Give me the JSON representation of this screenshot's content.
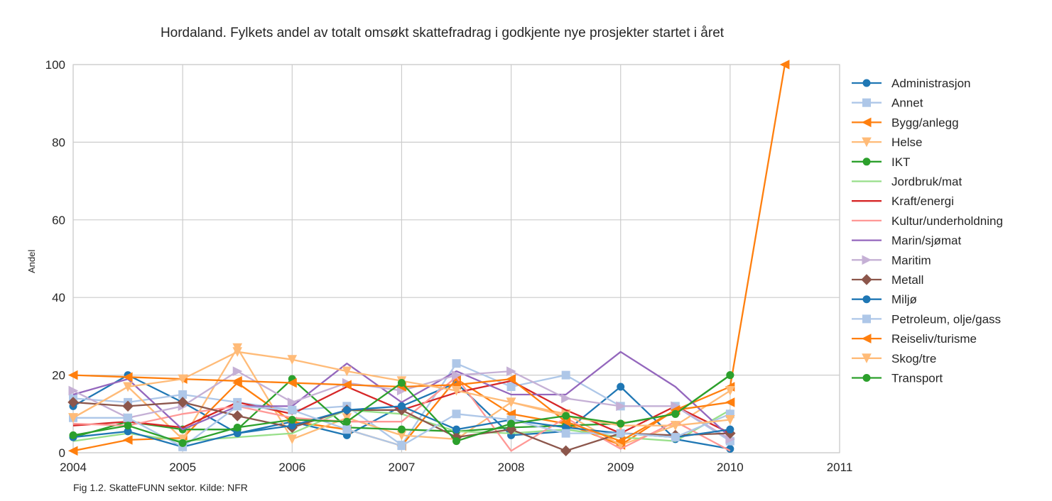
{
  "chart_data": {
    "type": "line",
    "title": "Hordaland. Fylkets andel av totalt omsøkt skattefradrag i godkjente nye prosjekter startet i året",
    "xlabel": "",
    "ylabel": "Andel",
    "xlim": [
      2004,
      2011
    ],
    "ylim": [
      0,
      100
    ],
    "x_ticks": [
      "2004",
      "2005",
      "2006",
      "2007",
      "2008",
      "2009",
      "2010",
      "2011"
    ],
    "y_ticks": [
      "0",
      "20",
      "40",
      "60",
      "80",
      "100"
    ],
    "grid": true,
    "legend_position": "right",
    "x": [
      2004,
      2004.5,
      2005,
      2005.5,
      2006,
      2006.5,
      2007,
      2007.5,
      2008,
      2008.5,
      2009,
      2009.5,
      2010,
      2010.5
    ],
    "series": [
      {
        "name": "Administrasjon",
        "color": "#1f77b4",
        "marker": "circle",
        "values": [
          12,
          20,
          13,
          5,
          8,
          4.5,
          12,
          18,
          4.5,
          5.5,
          17,
          3.5,
          1,
          null
        ]
      },
      {
        "name": "Annet",
        "color": "#aec7e8",
        "marker": "square",
        "values": [
          14,
          13,
          15,
          13,
          11,
          12,
          2,
          23,
          17,
          20,
          12,
          12,
          3,
          null
        ]
      },
      {
        "name": "Bygg/anlegg",
        "color": "#ff7f0e",
        "marker": "triangle-left",
        "values": [
          0.5,
          3.3,
          3.8,
          18,
          8,
          6,
          1.8,
          19,
          10,
          7.5,
          2,
          11,
          17,
          100
        ]
      },
      {
        "name": "Helse",
        "color": "#ffbb78",
        "marker": "triangle-down",
        "values": [
          9,
          17,
          3.5,
          27,
          3.5,
          9,
          4.5,
          3.5,
          13,
          10,
          2,
          7,
          16,
          null
        ]
      },
      {
        "name": "IKT",
        "color": "#2ca02c",
        "marker": "circle",
        "values": [
          4,
          8,
          6,
          6,
          19,
          6.5,
          6,
          5.5,
          6.5,
          7,
          7.5,
          10,
          20,
          null
        ]
      },
      {
        "name": "Jordbruk/mat",
        "color": "#98df8a",
        "marker": "none",
        "values": [
          3,
          5,
          3,
          4,
          5,
          11,
          10,
          5.5,
          5,
          6,
          4,
          3,
          11,
          null
        ]
      },
      {
        "name": "Kraft/energi",
        "color": "#d62728",
        "marker": "none",
        "values": [
          7,
          8,
          6.5,
          13,
          10,
          17,
          11,
          15.5,
          18.5,
          11,
          5,
          12,
          5,
          null
        ]
      },
      {
        "name": "Kultur/underholdning",
        "color": "#ff9896",
        "marker": "none",
        "values": [
          7.5,
          7,
          10,
          12,
          9,
          8,
          8,
          19.5,
          0.5,
          9,
          1,
          8,
          0.5,
          null
        ]
      },
      {
        "name": "Marin/sjømat",
        "color": "#9467bd",
        "marker": "none",
        "values": [
          15,
          19,
          6,
          12,
          12,
          23,
          13,
          21,
          15,
          15,
          26,
          17,
          4,
          null
        ]
      },
      {
        "name": "Maritim",
        "color": "#c5b0d5",
        "marker": "triangle-right",
        "values": [
          16,
          9,
          12,
          21,
          13,
          18,
          16,
          20,
          21,
          14,
          12,
          12,
          3.5,
          null
        ]
      },
      {
        "name": "Metall",
        "color": "#8c564b",
        "marker": "diamond",
        "values": [
          13,
          12,
          13,
          9.5,
          6.5,
          11,
          11,
          4,
          6,
          0.5,
          5,
          4.5,
          5,
          null
        ]
      },
      {
        "name": "Miljø",
        "color": "#1f77b4",
        "marker": "circle",
        "values": [
          4,
          5.5,
          1.5,
          5,
          7,
          11,
          12,
          6,
          8.5,
          6.5,
          5,
          4,
          6,
          null
        ]
      },
      {
        "name": "Petroleum, olje/gass",
        "color": "#aec7e8",
        "marker": "square",
        "values": [
          9,
          9,
          1.5,
          12,
          11,
          6,
          1.8,
          10,
          8.5,
          5,
          5,
          4,
          10,
          null
        ]
      },
      {
        "name": "Reiseliv/turisme",
        "color": "#ff7f0e",
        "marker": "triangle-left",
        "values": [
          20,
          19.5,
          19,
          18.5,
          18,
          17.5,
          17,
          17.5,
          19,
          8,
          3,
          11,
          13,
          null
        ]
      },
      {
        "name": "Skog/tre",
        "color": "#ffbb78",
        "marker": "triangle-down",
        "values": [
          9,
          17,
          19,
          26,
          24,
          21,
          18.5,
          16,
          13,
          9.5,
          7,
          7,
          8.5,
          null
        ]
      },
      {
        "name": "Transport",
        "color": "#2ca02c",
        "marker": "circle",
        "values": [
          4.5,
          7,
          2.5,
          6.5,
          8.5,
          8,
          18,
          3,
          7.5,
          9.5,
          7.5,
          10,
          20,
          null
        ]
      }
    ]
  },
  "source_note": "Fig 1.2. SkatteFUNN sektor. Kilde: NFR"
}
